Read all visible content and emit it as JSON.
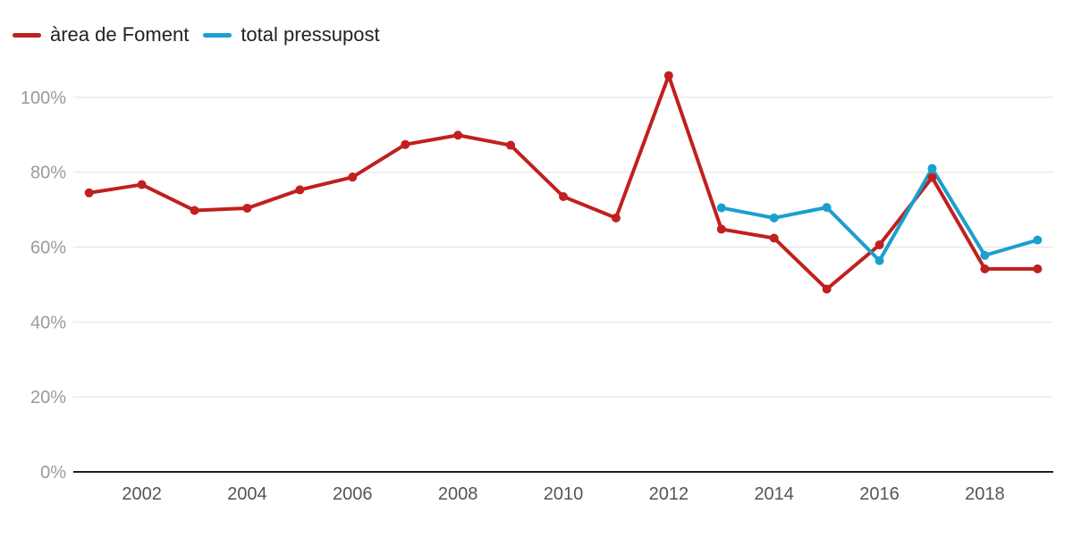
{
  "chart_data": {
    "type": "line",
    "title": "",
    "xlabel": "",
    "ylabel": "",
    "legend_position": "top-left",
    "grid": true,
    "x": [
      2001,
      2002,
      2003,
      2004,
      2005,
      2006,
      2007,
      2008,
      2009,
      2010,
      2011,
      2012,
      2013,
      2014,
      2015,
      2016,
      2017,
      2018,
      2019
    ],
    "xlim": [
      2000.7,
      2019.3
    ],
    "ylim": [
      0,
      110
    ],
    "x_ticks": [
      "2002",
      "2004",
      "2006",
      "2008",
      "2010",
      "2012",
      "2014",
      "2016",
      "2018"
    ],
    "y_ticks": [
      "0%",
      "20%",
      "40%",
      "60%",
      "80%",
      "100%"
    ],
    "series": [
      {
        "name": "àrea de Foment",
        "color": "#c0201f",
        "values": [
          74.5,
          76.7,
          69.8,
          70.4,
          75.3,
          78.7,
          87.4,
          89.9,
          87.2,
          73.5,
          67.8,
          105.8,
          64.8,
          62.4,
          48.8,
          60.6,
          78.6,
          54.2,
          54.2
        ]
      },
      {
        "name": "total pressupost",
        "color": "#1a9fce",
        "values": [
          null,
          null,
          null,
          null,
          null,
          null,
          null,
          null,
          null,
          null,
          null,
          null,
          70.5,
          67.8,
          70.6,
          56.4,
          81.0,
          57.8,
          61.9
        ]
      }
    ]
  }
}
